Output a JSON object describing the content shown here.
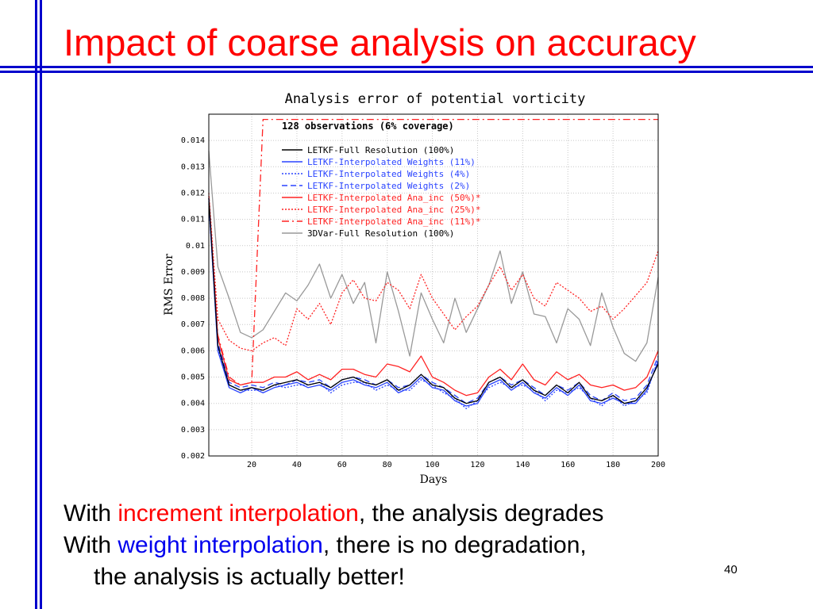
{
  "slide": {
    "title": "Impact of coarse analysis on accuracy",
    "bullet1": {
      "pre": "With ",
      "highlight": "increment interpolation",
      "post": ", the analysis degrades"
    },
    "bullet2": {
      "pre": "With ",
      "highlight": "weight interpolation",
      "post": ", there is no degradation,",
      "line2": "the analysis is actually better!"
    },
    "page_number": "40",
    "colors": {
      "title": "#ff0000",
      "accent_bar": "#0000cc",
      "increment_highlight": "#ff0000",
      "weight_highlight": "#0000ee"
    }
  },
  "chart_data": {
    "type": "line",
    "title": "Analysis error of potential vorticity",
    "annotation": "128 observations (6% coverage)",
    "xlabel": "Days",
    "ylabel": "RMS Error",
    "xlim": [
      1,
      200
    ],
    "ylim": [
      0.002,
      0.015
    ],
    "xticks": [
      20,
      40,
      60,
      80,
      100,
      120,
      140,
      160,
      180,
      200
    ],
    "yticks": [
      0.002,
      0.003,
      0.004,
      0.005,
      0.006,
      0.007,
      0.008,
      0.009,
      0.01,
      0.011,
      0.012,
      0.013,
      0.014
    ],
    "grid": true,
    "legend_position": "upper-left",
    "x": [
      1,
      5,
      10,
      15,
      20,
      25,
      30,
      35,
      40,
      45,
      50,
      55,
      60,
      65,
      70,
      75,
      80,
      85,
      90,
      95,
      100,
      105,
      110,
      115,
      120,
      125,
      130,
      135,
      140,
      145,
      150,
      155,
      160,
      165,
      170,
      175,
      180,
      185,
      190,
      195,
      200
    ],
    "series": [
      {
        "name": "LETKF-Full Resolution (100%)",
        "color": "#000000",
        "dash": "",
        "values": [
          0.0118,
          0.0062,
          0.0047,
          0.0045,
          0.0046,
          0.0045,
          0.0047,
          0.0048,
          0.0049,
          0.0047,
          0.0048,
          0.0046,
          0.0049,
          0.005,
          0.0048,
          0.0047,
          0.0049,
          0.0045,
          0.0047,
          0.0051,
          0.0047,
          0.0046,
          0.0042,
          0.004,
          0.0041,
          0.0048,
          0.005,
          0.0046,
          0.0049,
          0.0045,
          0.0043,
          0.0047,
          0.0044,
          0.0048,
          0.0042,
          0.0041,
          0.0043,
          0.004,
          0.0041,
          0.0046,
          0.0055
        ]
      },
      {
        "name": "LETKF-Interpolated Weights (11%)",
        "color": "#2a44ff",
        "dash": "",
        "values": [
          0.0117,
          0.006,
          0.0046,
          0.0044,
          0.0046,
          0.0044,
          0.0046,
          0.0047,
          0.0048,
          0.0046,
          0.0047,
          0.0045,
          0.0048,
          0.0049,
          0.0047,
          0.0046,
          0.0048,
          0.0044,
          0.0046,
          0.005,
          0.0046,
          0.0045,
          0.0041,
          0.0039,
          0.004,
          0.0047,
          0.0049,
          0.0045,
          0.0048,
          0.0044,
          0.0042,
          0.0046,
          0.0043,
          0.0047,
          0.0041,
          0.004,
          0.0042,
          0.004,
          0.004,
          0.0045,
          0.0056
        ]
      },
      {
        "name": "LETKF-Interpolated Weights (4%)",
        "color": "#2a44ff",
        "dash": "2,2",
        "values": [
          0.0116,
          0.0061,
          0.0047,
          0.0045,
          0.0045,
          0.0045,
          0.0047,
          0.0046,
          0.0047,
          0.0047,
          0.0048,
          0.0044,
          0.0047,
          0.0048,
          0.0048,
          0.0045,
          0.0047,
          0.0045,
          0.0045,
          0.0049,
          0.0047,
          0.0044,
          0.0042,
          0.0038,
          0.0041,
          0.0046,
          0.0048,
          0.0046,
          0.0047,
          0.0045,
          0.0041,
          0.0045,
          0.0044,
          0.0046,
          0.0042,
          0.0039,
          0.0043,
          0.0039,
          0.0041,
          0.0044,
          0.0057
        ]
      },
      {
        "name": "LETKF-Interpolated Weights (2%)",
        "color": "#2a44ff",
        "dash": "7,4",
        "values": [
          0.0118,
          0.0063,
          0.0048,
          0.0046,
          0.0047,
          0.0046,
          0.0048,
          0.0047,
          0.0049,
          0.0048,
          0.0049,
          0.0046,
          0.0049,
          0.005,
          0.0049,
          0.0047,
          0.0049,
          0.0046,
          0.0047,
          0.0051,
          0.0048,
          0.0046,
          0.0043,
          0.004,
          0.0042,
          0.0048,
          0.005,
          0.0047,
          0.0049,
          0.0046,
          0.0043,
          0.0047,
          0.0045,
          0.0048,
          0.0043,
          0.0041,
          0.0044,
          0.0041,
          0.0042,
          0.0047,
          0.0058
        ]
      },
      {
        "name": "LETKF-Interpolated Ana_inc (50%)*",
        "color": "#ff2222",
        "dash": "",
        "values": [
          0.0119,
          0.0065,
          0.0049,
          0.0047,
          0.0048,
          0.0048,
          0.005,
          0.005,
          0.0052,
          0.0049,
          0.0051,
          0.0049,
          0.0053,
          0.0053,
          0.0051,
          0.005,
          0.0055,
          0.0054,
          0.0052,
          0.0058,
          0.005,
          0.0048,
          0.0045,
          0.0043,
          0.0044,
          0.005,
          0.0053,
          0.0049,
          0.0055,
          0.0049,
          0.0047,
          0.0052,
          0.0049,
          0.0051,
          0.0047,
          0.0046,
          0.0047,
          0.0045,
          0.0046,
          0.005,
          0.006
        ]
      },
      {
        "name": "LETKF-Interpolated Ana_inc (25%)*",
        "color": "#ff2222",
        "dash": "2,2",
        "values": [
          0.012,
          0.0072,
          0.0064,
          0.0061,
          0.006,
          0.0063,
          0.0065,
          0.0062,
          0.0076,
          0.0072,
          0.0078,
          0.007,
          0.0082,
          0.0087,
          0.008,
          0.0079,
          0.0086,
          0.0083,
          0.0076,
          0.0089,
          0.008,
          0.0074,
          0.0068,
          0.0073,
          0.0077,
          0.0085,
          0.0092,
          0.0083,
          0.0089,
          0.008,
          0.0077,
          0.0086,
          0.0083,
          0.008,
          0.0075,
          0.0077,
          0.0072,
          0.0076,
          0.0081,
          0.0086,
          0.0098
        ]
      },
      {
        "name": "LETKF-Interpolated Ana_inc (11%)*",
        "color": "#ff2222",
        "dash": "9,4,2,4",
        "values": [
          0.0118,
          0.0066,
          0.005,
          0.0047,
          0.0048,
          0.0148,
          0.0148,
          0.0148,
          0.0148,
          0.0148,
          0.0148,
          0.0148,
          0.0148,
          0.0148,
          0.0148,
          0.0148,
          0.0148,
          0.0148,
          0.0148,
          0.0148,
          0.0148,
          0.0148,
          0.0148,
          0.0148,
          0.0148,
          0.0148,
          0.0148,
          0.0148,
          0.0148,
          0.0148,
          0.0148,
          0.0148,
          0.0148,
          0.0148,
          0.0148,
          0.0148,
          0.0148,
          0.0148,
          0.0148,
          0.0148,
          0.0148
        ]
      },
      {
        "name": "3DVar-Full Resolution (100%)",
        "color": "#999999",
        "dash": "",
        "values": [
          0.0136,
          0.0092,
          0.008,
          0.0067,
          0.0065,
          0.0068,
          0.0075,
          0.0082,
          0.0079,
          0.0085,
          0.0093,
          0.008,
          0.0089,
          0.0078,
          0.0086,
          0.0063,
          0.009,
          0.0075,
          0.0058,
          0.0082,
          0.0072,
          0.0063,
          0.008,
          0.0067,
          0.0076,
          0.0085,
          0.0098,
          0.0078,
          0.009,
          0.0074,
          0.0073,
          0.0063,
          0.0076,
          0.0072,
          0.0062,
          0.0082,
          0.0069,
          0.0059,
          0.0056,
          0.0063,
          0.0088
        ]
      }
    ]
  }
}
